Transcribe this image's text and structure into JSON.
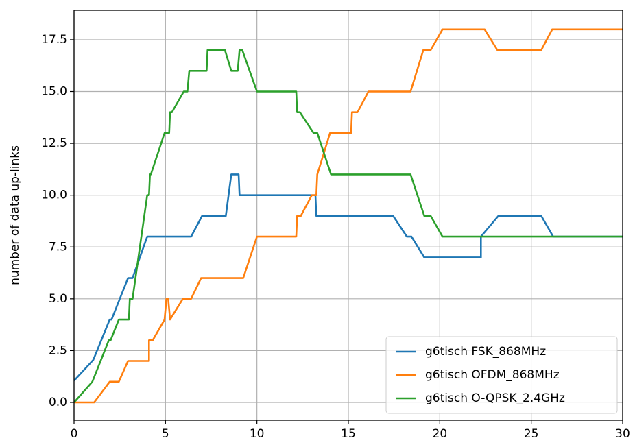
{
  "chart_data": {
    "type": "line",
    "y_label": "number of data up-links",
    "xlim": [
      0,
      30
    ],
    "ylim": [
      -0.86,
      18.92
    ],
    "xticks": [
      0,
      5,
      10,
      15,
      20,
      25,
      30
    ],
    "yticks": [
      {
        "value": 0,
        "label": "0.0"
      },
      {
        "value": 2.5,
        "label": "2.5"
      },
      {
        "value": 5,
        "label": "5.0"
      },
      {
        "value": 7.5,
        "label": "7.5"
      },
      {
        "value": 10,
        "label": "10.0"
      },
      {
        "value": 12.5,
        "label": "12.5"
      },
      {
        "value": 15,
        "label": "15.0"
      },
      {
        "value": 17.5,
        "label": "17.5"
      }
    ],
    "grid": true,
    "legend": "lower right",
    "series": [
      {
        "name": "g6tisch FSK_868MHz",
        "color": "#1f77b4",
        "x": [
          0,
          1.05,
          1.95,
          2.05,
          2.5,
          2.95,
          3.2,
          4.0,
          6.4,
          7.0,
          8.3,
          8.6,
          9.0,
          9.05,
          13.2,
          13.25,
          17.45,
          18.2,
          18.45,
          19.15,
          22.25,
          22.25,
          23.2,
          25.55,
          26.2,
          30
        ],
        "values": [
          1.05,
          2.05,
          4,
          4,
          5,
          6,
          6,
          8,
          8,
          9,
          9,
          11,
          11,
          10,
          10,
          9,
          9,
          8,
          8,
          7,
          7,
          8,
          9,
          9,
          8,
          8
        ]
      },
      {
        "name": "g6tisch OFDM_868MHz",
        "color": "#ff7f0e",
        "x": [
          0,
          1.1,
          1.95,
          2.45,
          2.95,
          4.1,
          4.1,
          4.3,
          4.95,
          5.05,
          5.15,
          5.25,
          5.95,
          6.4,
          6.95,
          9.25,
          10.0,
          12.15,
          12.2,
          12.4,
          13.0,
          13.25,
          13.3,
          14.0,
          15.15,
          15.2,
          15.5,
          16.1,
          18.4,
          19.1,
          19.5,
          20.15,
          22.45,
          23.15,
          25.55,
          26.15,
          30
        ],
        "values": [
          0,
          0,
          1,
          1,
          2,
          2,
          3,
          3,
          4,
          5,
          5,
          4,
          5,
          5,
          6,
          6,
          8,
          8,
          9,
          9,
          10,
          10,
          11,
          13,
          13,
          14,
          14,
          15,
          15,
          17,
          17,
          18,
          18,
          17,
          17,
          18,
          18
        ]
      },
      {
        "name": "g6tisch O-QPSK_2.4GHz",
        "color": "#2ca02c",
        "x": [
          0,
          1.0,
          1.9,
          2.0,
          2.45,
          3.0,
          3.05,
          3.2,
          4.0,
          4.1,
          4.15,
          4.2,
          4.95,
          5.2,
          5.25,
          5.35,
          6.0,
          6.2,
          6.3,
          7.25,
          7.3,
          8.25,
          8.6,
          8.95,
          9.05,
          9.2,
          10.0,
          12.15,
          12.2,
          12.35,
          13.1,
          13.3,
          14.05,
          18.4,
          19.15,
          19.5,
          20.15,
          30
        ],
        "values": [
          0,
          1,
          3,
          3,
          4,
          4,
          5,
          5,
          10,
          10,
          11,
          11,
          13,
          13,
          14,
          14,
          15,
          15,
          16,
          16,
          17,
          17,
          16,
          16,
          17,
          17,
          15,
          15,
          14,
          14,
          13,
          13,
          11,
          11,
          9,
          9,
          8,
          8
        ]
      }
    ]
  }
}
